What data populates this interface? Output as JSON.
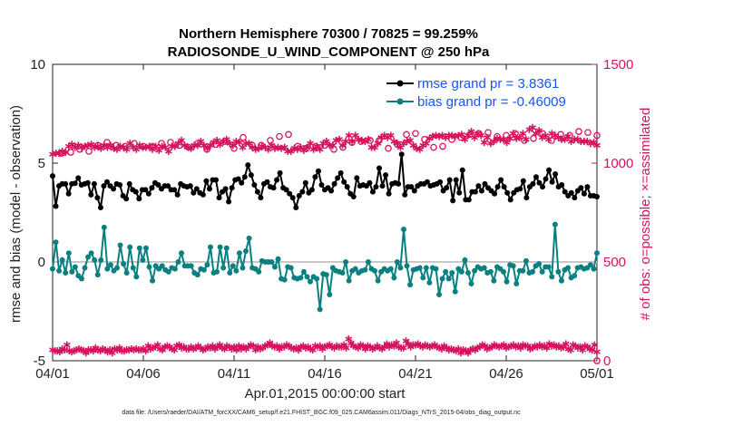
{
  "chart_data": {
    "type": "line",
    "title": "Northern Hemisphere 70300 / 70825 = 99.259%",
    "subtitle": "RADIOSONDE_U_WIND_COMPONENT @ 250 hPa",
    "xlabel": "Apr.01,2015 00:00:00 start",
    "ylabel": "rmse and bias (model - observation)",
    "ylabel_right": "# of obs: o=possible; ×=assimilated",
    "footnote": "data file: /Users/raeder/DAI/ATM_forcXX/CAM6_setup/f.e21.FHIST_BGC.f09_025.CAM6assim.011/Diags_NTrS_2015-04/obs_diag_output.nc",
    "xlim": [
      0,
      30
    ],
    "ylim": [
      -5,
      10
    ],
    "ylim_right": [
      0,
      1500
    ],
    "x_ticks": [
      0,
      5,
      10,
      15,
      20,
      25,
      30
    ],
    "x_tick_labels": [
      "04/01",
      "04/06",
      "04/11",
      "04/16",
      "04/21",
      "04/26",
      "05/01"
    ],
    "y_ticks": [
      -5,
      0,
      5,
      10
    ],
    "y_tick_labels": [
      "-5",
      "0",
      "5",
      "10"
    ],
    "y_right_ticks": [
      0,
      500,
      1000,
      1500
    ],
    "y_right_tick_labels": [
      "0",
      "500",
      "1000",
      "1500"
    ],
    "zero_line": 0,
    "colors": {
      "rmse": "#000000",
      "bias": "#0a8080",
      "obs": "#d6135e",
      "zero": "#c8c8c8",
      "legend_text": "#1a55e8"
    },
    "step_days": 0.25,
    "series": [
      {
        "name": "rmse grand pr = 3.8361",
        "axis": "left",
        "values": [
          4.35,
          2.82,
          3.85,
          3.95,
          3.95,
          3.45,
          3.95,
          3.98,
          4.25,
          3.9,
          3.95,
          4.0,
          3.4,
          3.95,
          3.25,
          2.75,
          3.85,
          4.05,
          3.85,
          3.7,
          3.95,
          3.9,
          3.35,
          3.2,
          3.95,
          3.65,
          3.55,
          3.2,
          3.65,
          3.65,
          3.45,
          3.75,
          4.0,
          3.9,
          3.7,
          3.85,
          3.85,
          3.65,
          3.65,
          3.4,
          3.95,
          3.85,
          3.8,
          3.85,
          3.5,
          3.7,
          3.5,
          3.4,
          4.1,
          3.7,
          4.15,
          4.15,
          3.25,
          3.55,
          3.7,
          3.05,
          3.75,
          4.15,
          4.2,
          4.0,
          4.3,
          4.9,
          4.4,
          3.9,
          3.55,
          3.25,
          3.95,
          4.05,
          3.8,
          3.75,
          4.15,
          4.5,
          3.75,
          3.65,
          3.45,
          3.25,
          2.75,
          3.35,
          3.55,
          4.0,
          3.5,
          3.65,
          4.3,
          4.6,
          3.9,
          3.65,
          3.75,
          3.6,
          3.95,
          4.25,
          4.5,
          4.05,
          3.8,
          3.45,
          3.3,
          4.25,
          3.85,
          3.9,
          3.85,
          4.0,
          3.55,
          3.8,
          4.75,
          3.85,
          4.4,
          3.45,
          3.95,
          4.0,
          3.95,
          5.45,
          3.4,
          3.8,
          3.8,
          3.6,
          3.85,
          3.95,
          3.95,
          4.05,
          3.85,
          3.9,
          3.95,
          4.05,
          3.6,
          3.75,
          4.15,
          3.1,
          4.15,
          3.5,
          4.65,
          3.15,
          3.15,
          3.55,
          3.55,
          3.85,
          3.6,
          3.95,
          3.75,
          3.6,
          3.45,
          3.8,
          4.15,
          3.8,
          3.5,
          3.15,
          3.5,
          3.65,
          3.7,
          4.1,
          3.25,
          3.8,
          3.95,
          4.3,
          4.0,
          3.8,
          4.2,
          4.65,
          4.05,
          4.45,
          3.8,
          3.9,
          3.55,
          3.35,
          3.5,
          3.25,
          3.6,
          3.75,
          3.45,
          3.8,
          3.35,
          3.35,
          3.3
        ]
      },
      {
        "name": "bias grand pr = -0.46009",
        "axis": "left",
        "values": [
          -0.35,
          1.0,
          -0.45,
          0.1,
          -0.55,
          0.45,
          -0.5,
          -0.25,
          -0.7,
          -0.85,
          -0.3,
          0.25,
          0.45,
          0.1,
          -0.65,
          0.1,
          1.75,
          -0.35,
          -0.15,
          -0.45,
          -0.3,
          0.85,
          -0.1,
          -0.55,
          0.75,
          -0.3,
          -0.75,
          0.7,
          0.1,
          0.7,
          -0.25,
          -0.95,
          -0.2,
          -0.35,
          -0.2,
          -0.4,
          -0.5,
          -0.3,
          -0.35,
          0.0,
          0.45,
          -0.2,
          -0.2,
          -0.2,
          -0.55,
          -0.65,
          -0.35,
          -0.4,
          -0.15,
          0.75,
          -0.55,
          -0.5,
          0.75,
          -0.3,
          0.7,
          -0.55,
          -0.2,
          -0.45,
          0.45,
          -0.3,
          0.55,
          1.2,
          -0.3,
          -0.35,
          -0.5,
          0.05,
          0.0,
          0.0,
          0.0,
          -0.25,
          0.15,
          -0.85,
          -0.9,
          -0.25,
          -0.3,
          -0.8,
          -0.85,
          -0.8,
          -0.5,
          -0.75,
          -1.0,
          -0.75,
          -0.85,
          -2.4,
          -0.6,
          -0.65,
          -1.65,
          -0.3,
          -0.45,
          -0.5,
          -0.55,
          0.0,
          -0.95,
          -0.45,
          -0.35,
          -0.55,
          -0.45,
          -0.4,
          0.0,
          -0.35,
          -0.45,
          -0.95,
          -0.5,
          -0.35,
          -0.45,
          -0.35,
          -0.8,
          0.0,
          -0.3,
          1.65,
          -0.2,
          -1.15,
          -0.4,
          -0.35,
          -0.3,
          -0.8,
          -0.3,
          -1.05,
          -0.3,
          -0.35,
          -1.65,
          -0.85,
          -0.5,
          -0.85,
          -0.55,
          -1.5,
          -0.35,
          -0.5,
          0.1,
          -0.55,
          -1.1,
          -0.45,
          -0.25,
          -0.35,
          -0.3,
          -0.55,
          -0.5,
          -0.95,
          -0.25,
          -0.35,
          -0.5,
          -1.0,
          -0.15,
          -0.2,
          -1.1,
          -0.45,
          -0.45,
          0.05,
          -0.55,
          -0.5,
          -0.2,
          -0.1,
          -0.5,
          -0.25,
          -0.25,
          -0.75,
          1.9,
          -0.5,
          -0.95,
          -0.4,
          -0.3,
          -0.8,
          -0.7,
          -0.3,
          -0.25,
          -0.35,
          -0.3,
          -0.15,
          -0.35,
          0.45
        ]
      },
      {
        "name": "possible obs (o)",
        "axis": "right",
        "points": [
          [
            0.5,
            1050
          ],
          [
            1.0,
            1055
          ],
          [
            1.5,
            1070
          ],
          [
            2.0,
            1060
          ],
          [
            2.5,
            1090
          ],
          [
            3.0,
            1105
          ],
          [
            3.5,
            1090
          ],
          [
            4.0,
            1085
          ],
          [
            4.5,
            1100
          ],
          [
            5.0,
            1085
          ],
          [
            5.5,
            1085
          ],
          [
            6.0,
            1100
          ],
          [
            6.5,
            1105
          ],
          [
            7.0,
            1090
          ],
          [
            7.5,
            1080
          ],
          [
            8.0,
            1100
          ],
          [
            8.5,
            1070
          ],
          [
            9.0,
            1095
          ],
          [
            9.5,
            1110
          ],
          [
            10.0,
            1075
          ],
          [
            10.5,
            1130
          ],
          [
            11.0,
            1090
          ],
          [
            11.5,
            1090
          ],
          [
            12.0,
            1115
          ],
          [
            12.5,
            1135
          ],
          [
            13.0,
            1145
          ],
          [
            13.5,
            1085
          ],
          [
            14.0,
            1075
          ],
          [
            14.5,
            1085
          ],
          [
            15.0,
            1090
          ],
          [
            15.5,
            1070
          ],
          [
            16.0,
            1080
          ],
          [
            16.5,
            1105
          ],
          [
            17.0,
            1110
          ],
          [
            17.5,
            1115
          ],
          [
            18.0,
            1115
          ],
          [
            18.5,
            1075
          ],
          [
            19.0,
            1095
          ],
          [
            19.5,
            1145
          ],
          [
            20.0,
            1150
          ],
          [
            20.5,
            1120
          ],
          [
            21.0,
            1080
          ],
          [
            21.5,
            1085
          ],
          [
            22.0,
            1120
          ],
          [
            22.5,
            1130
          ],
          [
            23.0,
            1145
          ],
          [
            23.5,
            1150
          ],
          [
            24.0,
            1155
          ],
          [
            24.5,
            1135
          ],
          [
            25.0,
            1140
          ],
          [
            25.5,
            1150
          ],
          [
            26.0,
            1115
          ],
          [
            26.5,
            1125
          ],
          [
            27.0,
            1150
          ],
          [
            27.5,
            1115
          ],
          [
            28.0,
            1145
          ],
          [
            28.5,
            1140
          ],
          [
            29.0,
            1160
          ],
          [
            29.5,
            1155
          ],
          [
            30.0,
            1140
          ]
        ],
        "marker": "circle-open"
      },
      {
        "name": "assimilated obs (×)",
        "axis": "right",
        "values": [
          1045,
          1050,
          1050,
          1060,
          1055,
          1085,
          1095,
          1080,
          1090,
          1080,
          1085,
          1090,
          1095,
          1080,
          1085,
          1075,
          1090,
          1080,
          1090,
          1075,
          1070,
          1085,
          1080,
          1070,
          1100,
          1080,
          1070,
          1090,
          1080,
          1080,
          1085,
          1070,
          1085,
          1065,
          1085,
          1080,
          1060,
          1085,
          1085,
          1100,
          1115,
          1090,
          1080,
          1075,
          1090,
          1090,
          1110,
          1090,
          1075,
          1090,
          1105,
          1115,
          1095,
          1110,
          1120,
          1100,
          1090,
          1110,
          1105,
          1080,
          1100,
          1100,
          1080,
          1070,
          1075,
          1085,
          1080,
          1070,
          1090,
          1075,
          1080,
          1075,
          1080,
          1060,
          1060,
          1075,
          1070,
          1080,
          1065,
          1080,
          1100,
          1070,
          1085,
          1070,
          1100,
          1110,
          1090,
          1090,
          1115,
          1120,
          1090,
          1110,
          1140,
          1110,
          1140,
          1120,
          1115,
          1110,
          1120,
          1080,
          1080,
          1100,
          1130,
          1140,
          1130,
          1140,
          1110,
          1100,
          1080,
          1100,
          1110,
          1115,
          1090,
          1075,
          1070,
          1090,
          1100,
          1125,
          1135,
          1140,
          1135,
          1140,
          1130,
          1140,
          1140,
          1135,
          1140,
          1145,
          1120,
          1140,
          1160,
          1130,
          1150,
          1140,
          1105,
          1130,
          1100,
          1110,
          1125,
          1120,
          1120,
          1105,
          1125,
          1150,
          1125,
          1130,
          1150,
          1120,
          1170,
          1180,
          1150,
          1165,
          1130,
          1140,
          1120,
          1150,
          1140,
          1130,
          1120,
          1120,
          1135,
          1110,
          1120,
          1120,
          1110,
          1110,
          1110,
          1100,
          1105,
          1090
        ],
        "marker": "asterisk"
      },
      {
        "name": "possible obs, bias/rmse count (o)",
        "axis": "right",
        "points": [
          [
            30.0,
            0
          ]
        ],
        "marker": "circle-open"
      },
      {
        "name": "assimilated obs low (×)",
        "axis": "right",
        "values": [
          55,
          50,
          50,
          45,
          60,
          55,
          80,
          50,
          45,
          50,
          55,
          60,
          55,
          50,
          40,
          55,
          55,
          50,
          65,
          55,
          50,
          60,
          55,
          45,
          55,
          40,
          60,
          55,
          65,
          50,
          50,
          55,
          55,
          60,
          55,
          60,
          55,
          55,
          60,
          50,
          75,
          60,
          65,
          70,
          80,
          60,
          55,
          70,
          75,
          70,
          60,
          55,
          75,
          80,
          65,
          70,
          60,
          60,
          70,
          60,
          65,
          75,
          65,
          55,
          60,
          70,
          65,
          75,
          60,
          70,
          80,
          65,
          60,
          75,
          70,
          60,
          70,
          55,
          75,
          60,
          70,
          60,
          70,
          80,
          75,
          55,
          70,
          60,
          65,
          75,
          80,
          90,
          75,
          70,
          75,
          60,
          70,
          70,
          80,
          75,
          65,
          60,
          65,
          55,
          70,
          75,
          65,
          70,
          60,
          55,
          75,
          70,
          75,
          60,
          70,
          75,
          80,
          70,
          65,
          75,
          70,
          70,
          80,
          65,
          110,
          90,
          75,
          70,
          65,
          80,
          75,
          60,
          75,
          70,
          60,
          65,
          75,
          65,
          60,
          70,
          85,
          70,
          80,
          75,
          90,
          70,
          65,
          65,
          100,
          85,
          70,
          80,
          80,
          85,
          75,
          70,
          80,
          75,
          70,
          75,
          80,
          70,
          65,
          60,
          75,
          65,
          55,
          60,
          55,
          50,
          60,
          40,
          55,
          50,
          40,
          55,
          60,
          55,
          65,
          70,
          80,
          75,
          60,
          65,
          70,
          80,
          75,
          70,
          75,
          80,
          65,
          70,
          75,
          80,
          70,
          75,
          65,
          80,
          75,
          75,
          60,
          65,
          75,
          70,
          80,
          70,
          75,
          65,
          85,
          75,
          80,
          70,
          75,
          65,
          70,
          85,
          60,
          55,
          80,
          75,
          65,
          70,
          55,
          75,
          70,
          60,
          55,
          80,
          45
        ],
        "marker": "asterisk"
      }
    ],
    "legend": [
      {
        "label": "rmse grand pr = 3.8361",
        "series": "rmse"
      },
      {
        "label": "bias grand pr = -0.46009",
        "series": "bias"
      }
    ],
    "legend_position": "top-right"
  }
}
